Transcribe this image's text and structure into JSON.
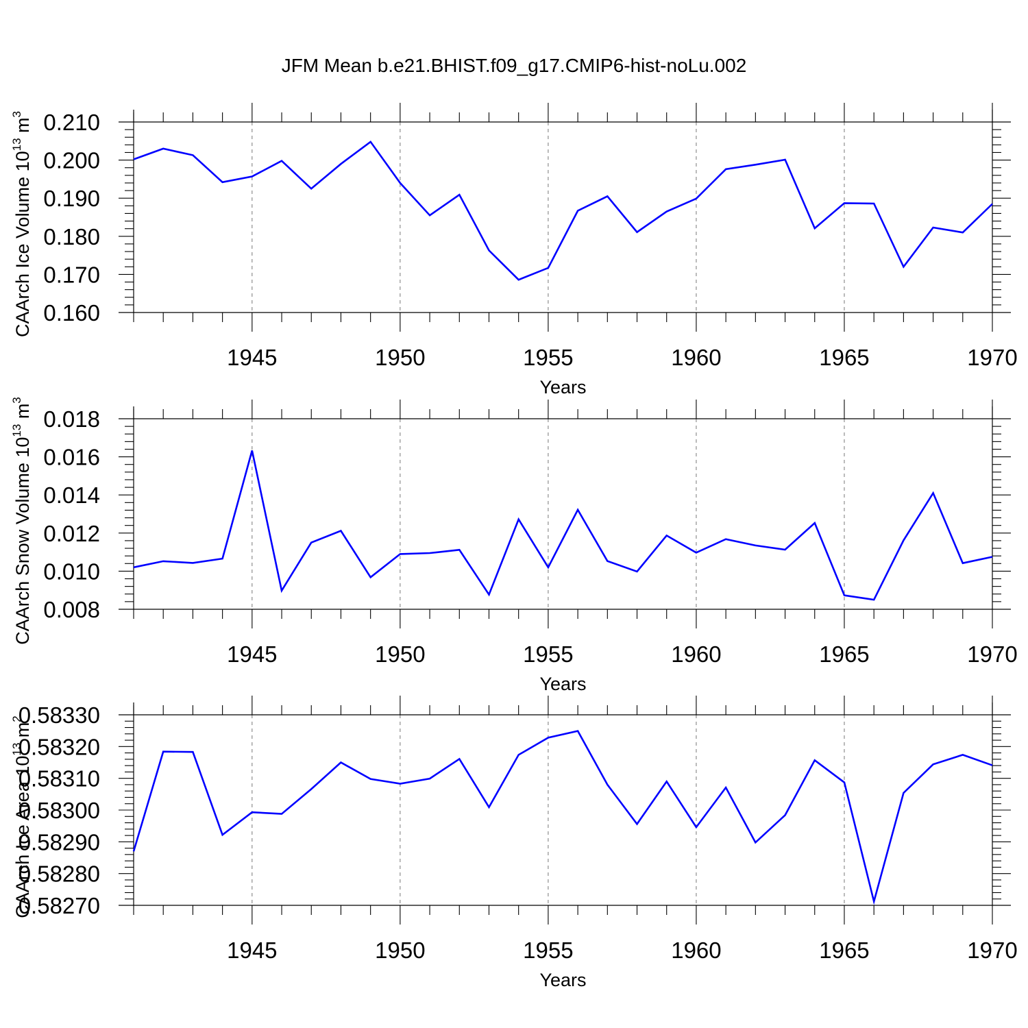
{
  "title": "JFM Mean b.e21.BHIST.f09_g17.CMIP6-hist-noLu.002",
  "colors": {
    "line": "#0000ff",
    "grid": "#777777",
    "axis": "#000000"
  },
  "chart_data": [
    {
      "type": "line",
      "title": "",
      "xlabel": "Years",
      "ylabel": "CAArch Ice Volume 10",
      "ylabel_exp": "13",
      "ylabel_unit": "m",
      "ylabel_unit_exp": "3",
      "xlim": [
        1941,
        1970
      ],
      "ylim": [
        0.16,
        0.21
      ],
      "x_ticks": [
        1945,
        1950,
        1955,
        1960,
        1965,
        1970
      ],
      "y_ticks": [
        "0.160",
        "0.170",
        "0.180",
        "0.190",
        "0.200",
        "0.210"
      ],
      "grid": "vertical dashed at major x ticks",
      "x": [
        1941,
        1942,
        1943,
        1944,
        1945,
        1946,
        1947,
        1948,
        1949,
        1950,
        1951,
        1952,
        1953,
        1954,
        1955,
        1956,
        1957,
        1958,
        1959,
        1960,
        1961,
        1962,
        1963,
        1964,
        1965,
        1966,
        1967,
        1968,
        1969,
        1970
      ],
      "values": [
        0.2002,
        0.203,
        0.2013,
        0.1942,
        0.1957,
        0.1998,
        0.1925,
        0.199,
        0.2048,
        0.194,
        0.1855,
        0.1909,
        0.1763,
        0.1686,
        0.1717,
        0.1867,
        0.1905,
        0.1811,
        0.1865,
        0.1899,
        0.1976,
        0.1988,
        0.2001,
        0.1821,
        0.1887,
        0.1886,
        0.172,
        0.1823,
        0.181,
        0.1885
      ]
    },
    {
      "type": "line",
      "title": "",
      "xlabel": "Years",
      "ylabel": "CAArch Snow Volume 10",
      "ylabel_exp": "13",
      "ylabel_unit": "m",
      "ylabel_unit_exp": "3",
      "xlim": [
        1941,
        1970
      ],
      "ylim": [
        0.008,
        0.018
      ],
      "x_ticks": [
        1945,
        1950,
        1955,
        1960,
        1965,
        1970
      ],
      "y_ticks": [
        "0.008",
        "0.010",
        "0.012",
        "0.014",
        "0.016",
        "0.018"
      ],
      "grid": "vertical dashed at major x ticks",
      "x": [
        1941,
        1942,
        1943,
        1944,
        1945,
        1946,
        1947,
        1948,
        1949,
        1950,
        1951,
        1952,
        1953,
        1954,
        1955,
        1956,
        1957,
        1958,
        1959,
        1960,
        1961,
        1962,
        1963,
        1964,
        1965,
        1966,
        1967,
        1968,
        1969,
        1970
      ],
      "values": [
        0.0102,
        0.01052,
        0.01043,
        0.01066,
        0.01633,
        0.00898,
        0.0115,
        0.01212,
        0.00968,
        0.0109,
        0.01095,
        0.01112,
        0.00877,
        0.01272,
        0.0102,
        0.01322,
        0.01053,
        0.00998,
        0.01187,
        0.01097,
        0.01168,
        0.01135,
        0.01113,
        0.01253,
        0.00873,
        0.0085,
        0.01162,
        0.0141,
        0.01042,
        0.01075
      ]
    },
    {
      "type": "line",
      "title": "",
      "xlabel": "Years",
      "ylabel": "CAArch Ice Area 10",
      "ylabel_exp": "13",
      "ylabel_unit": "m",
      "ylabel_unit_exp": "2",
      "xlim": [
        1941,
        1970
      ],
      "ylim": [
        0.5827,
        0.5833
      ],
      "x_ticks": [
        1945,
        1950,
        1955,
        1960,
        1965,
        1970
      ],
      "y_ticks": [
        "0.58270",
        "0.58280",
        "0.58290",
        "0.58300",
        "0.58310",
        "0.58320",
        "0.58330"
      ],
      "grid": "vertical dashed at major x ticks",
      "x": [
        1941,
        1942,
        1943,
        1944,
        1945,
        1946,
        1947,
        1948,
        1949,
        1950,
        1951,
        1952,
        1953,
        1954,
        1955,
        1956,
        1957,
        1958,
        1959,
        1960,
        1961,
        1962,
        1963,
        1964,
        1965,
        1966,
        1967,
        1968,
        1969,
        1970
      ],
      "values": [
        0.58287,
        0.583184,
        0.583183,
        0.582922,
        0.582993,
        0.582988,
        0.583066,
        0.58315,
        0.583098,
        0.583083,
        0.583099,
        0.583161,
        0.583009,
        0.583174,
        0.583228,
        0.583249,
        0.58308,
        0.582956,
        0.58309,
        0.582946,
        0.583071,
        0.582898,
        0.582984,
        0.583157,
        0.583087,
        0.582712,
        0.583054,
        0.583144,
        0.583174,
        0.583141
      ]
    }
  ]
}
